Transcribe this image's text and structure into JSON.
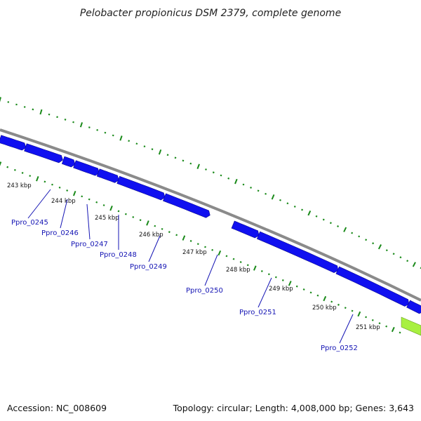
{
  "title": "Pelobacter propionicus DSM 2379, complete genome",
  "footer": {
    "accession": "Accession: NC_008609",
    "summary": "Topology: circular; Length: 4,008,000 bp; Genes: 3,643"
  },
  "colors": {
    "backbone": "#8a8a8a",
    "gene": "#1010f0",
    "gene_highlight": "#a8f040",
    "tick_dots": "#1a8a1a",
    "label_text": "#1414b4",
    "leader_line": "#1414b4"
  },
  "scale_labels": [
    "243 kbp",
    "244 kbp",
    "245 kbp",
    "246 kbp",
    "247 kbp",
    "248 kbp",
    "249 kbp",
    "250 kbp",
    "251 kbp"
  ],
  "gene_labels": [
    "Ppro_0245",
    "Ppro_0246",
    "Ppro_0247",
    "Ppro_0248",
    "Ppro_0249",
    "Ppro_0250",
    "Ppro_0251",
    "Ppro_0252"
  ]
}
